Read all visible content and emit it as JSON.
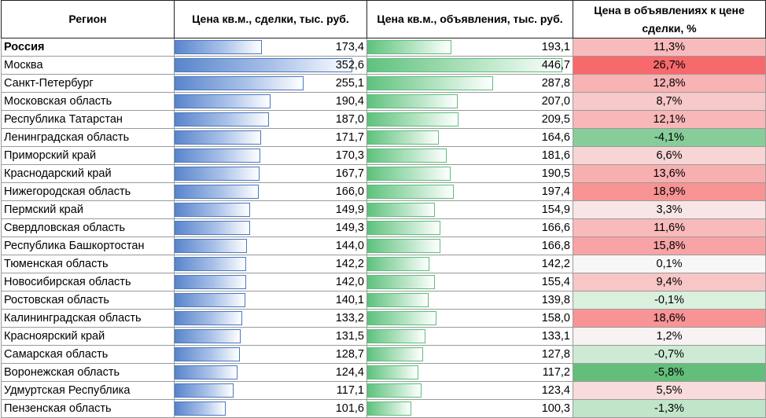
{
  "chart_data": {
    "type": "table",
    "columns": [
      "Регион",
      "Цена кв.м., сделки, тыс. руб.",
      "Цена кв.м., объявления, тыс. руб.",
      "Цена в объявлениях к цене сделки, %"
    ],
    "bar_max": {
      "deal": 380,
      "ad": 470
    },
    "colors": {
      "deal_bar": "#5a85cc",
      "ad_bar": "#5fc27e",
      "ratio_positive": "#f8696b",
      "ratio_negative": "#63be7b"
    },
    "rows": [
      {
        "region": "Россия",
        "deal": 173.4,
        "deal_label": "173,4",
        "ad": 193.1,
        "ad_label": "193,1",
        "ratio": 11.3,
        "ratio_label": "11,3%",
        "bold": true
      },
      {
        "region": "Москва",
        "deal": 352.6,
        "deal_label": "352,6",
        "ad": 446.7,
        "ad_label": "446,7",
        "ratio": 26.7,
        "ratio_label": "26,7%"
      },
      {
        "region": "Санкт-Петербург",
        "deal": 255.1,
        "deal_label": "255,1",
        "ad": 287.8,
        "ad_label": "287,8",
        "ratio": 12.8,
        "ratio_label": "12,8%"
      },
      {
        "region": "Московская область",
        "deal": 190.4,
        "deal_label": "190,4",
        "ad": 207.0,
        "ad_label": "207,0",
        "ratio": 8.7,
        "ratio_label": "8,7%"
      },
      {
        "region": "Республика Татарстан",
        "deal": 187.0,
        "deal_label": "187,0",
        "ad": 209.5,
        "ad_label": "209,5",
        "ratio": 12.1,
        "ratio_label": "12,1%"
      },
      {
        "region": "Ленинградская область",
        "deal": 171.7,
        "deal_label": "171,7",
        "ad": 164.6,
        "ad_label": "164,6",
        "ratio": -4.1,
        "ratio_label": "-4,1%"
      },
      {
        "region": "Приморский край",
        "deal": 170.3,
        "deal_label": "170,3",
        "ad": 181.6,
        "ad_label": "181,6",
        "ratio": 6.6,
        "ratio_label": "6,6%"
      },
      {
        "region": "Краснодарский край",
        "deal": 167.7,
        "deal_label": "167,7",
        "ad": 190.5,
        "ad_label": "190,5",
        "ratio": 13.6,
        "ratio_label": "13,6%"
      },
      {
        "region": "Нижегородская область",
        "deal": 166.0,
        "deal_label": "166,0",
        "ad": 197.4,
        "ad_label": "197,4",
        "ratio": 18.9,
        "ratio_label": "18,9%"
      },
      {
        "region": "Пермский край",
        "deal": 149.9,
        "deal_label": "149,9",
        "ad": 154.9,
        "ad_label": "154,9",
        "ratio": 3.3,
        "ratio_label": "3,3%"
      },
      {
        "region": "Свердловская область",
        "deal": 149.3,
        "deal_label": "149,3",
        "ad": 166.6,
        "ad_label": "166,6",
        "ratio": 11.6,
        "ratio_label": "11,6%"
      },
      {
        "region": "Республика Башкортостан",
        "deal": 144.0,
        "deal_label": "144,0",
        "ad": 166.8,
        "ad_label": "166,8",
        "ratio": 15.8,
        "ratio_label": "15,8%"
      },
      {
        "region": "Тюменская область",
        "deal": 142.2,
        "deal_label": "142,2",
        "ad": 142.2,
        "ad_label": "142,2",
        "ratio": 0.1,
        "ratio_label": "0,1%"
      },
      {
        "region": "Новосибирская область",
        "deal": 142.0,
        "deal_label": "142,0",
        "ad": 155.4,
        "ad_label": "155,4",
        "ratio": 9.4,
        "ratio_label": "9,4%"
      },
      {
        "region": "Ростовская область",
        "deal": 140.1,
        "deal_label": "140,1",
        "ad": 139.8,
        "ad_label": "139,8",
        "ratio": -0.1,
        "ratio_label": "-0,1%"
      },
      {
        "region": "Калининградская область",
        "deal": 133.2,
        "deal_label": "133,2",
        "ad": 158.0,
        "ad_label": "158,0",
        "ratio": 18.6,
        "ratio_label": "18,6%"
      },
      {
        "region": "Красноярский край",
        "deal": 131.5,
        "deal_label": "131,5",
        "ad": 133.1,
        "ad_label": "133,1",
        "ratio": 1.2,
        "ratio_label": "1,2%"
      },
      {
        "region": "Самарская область",
        "deal": 128.7,
        "deal_label": "128,7",
        "ad": 127.8,
        "ad_label": "127,8",
        "ratio": -0.7,
        "ratio_label": "-0,7%"
      },
      {
        "region": "Воронежская область",
        "deal": 124.4,
        "deal_label": "124,4",
        "ad": 117.2,
        "ad_label": "117,2",
        "ratio": -5.8,
        "ratio_label": "-5,8%"
      },
      {
        "region": "Удмуртская Республика",
        "deal": 117.1,
        "deal_label": "117,1",
        "ad": 123.4,
        "ad_label": "123,4",
        "ratio": 5.5,
        "ratio_label": "5,5%"
      },
      {
        "region": "Пензенская область",
        "deal": 101.6,
        "deal_label": "101,6",
        "ad": 100.3,
        "ad_label": "100,3",
        "ratio": -1.3,
        "ratio_label": "-1,3%"
      }
    ]
  }
}
